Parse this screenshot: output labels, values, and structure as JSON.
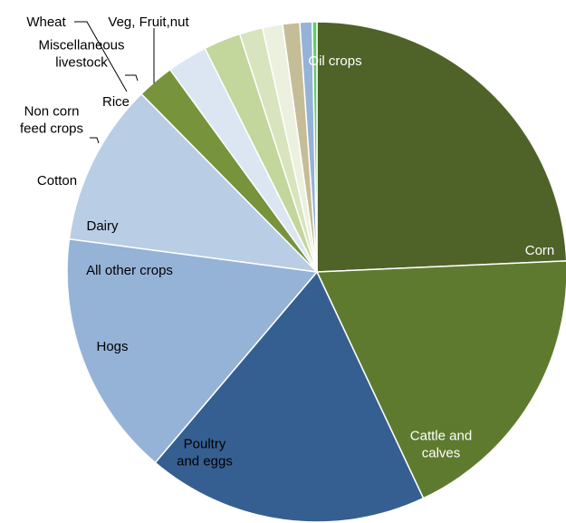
{
  "chart_data": {
    "type": "pie",
    "title": "",
    "start_angle_deg": 0,
    "direction": "clockwise",
    "slices": [
      {
        "label": "Oil crops",
        "value": 24.3,
        "color": "#4f6228",
        "label_color": "#ffffff"
      },
      {
        "label": "Corn",
        "value": 18.7,
        "color": "#5e7a2f",
        "label_color": "#ffffff"
      },
      {
        "label": "Cattle and calves",
        "value": 18.2,
        "color": "#365f91",
        "label_color": "#ffffff"
      },
      {
        "label": "Poultry and eggs",
        "value": 15.9,
        "color": "#95b3d7",
        "label_color": "#000000"
      },
      {
        "label": "Hogs",
        "value": 10.5,
        "color": "#b9cde5",
        "label_color": "#000000"
      },
      {
        "label": "All other crops",
        "value": 2.4,
        "color": "#77933c",
        "label_color": "#000000"
      },
      {
        "label": "Dairy",
        "value": 2.6,
        "color": "#dce6f2",
        "label_color": "#000000"
      },
      {
        "label": "Cotton",
        "value": 2.4,
        "color": "#c3d69b",
        "label_color": "#000000"
      },
      {
        "label": "Non corn feed crops",
        "value": 1.5,
        "color": "#d7e4bd",
        "label_color": "#000000"
      },
      {
        "label": "Miscellaneous livestock",
        "value": 1.3,
        "color": "#ebf1de",
        "label_color": "#000000"
      },
      {
        "label": "Rice",
        "value": 1.1,
        "color": "#c4bd97",
        "label_color": "#000000"
      },
      {
        "label": "Wheat",
        "value": 0.8,
        "color": "#95b3d7",
        "label_color": "#000000"
      },
      {
        "label": "Veg, Fruit,nut",
        "value": 0.3,
        "color": "#66cc66",
        "label_color": "#000000"
      }
    ]
  }
}
